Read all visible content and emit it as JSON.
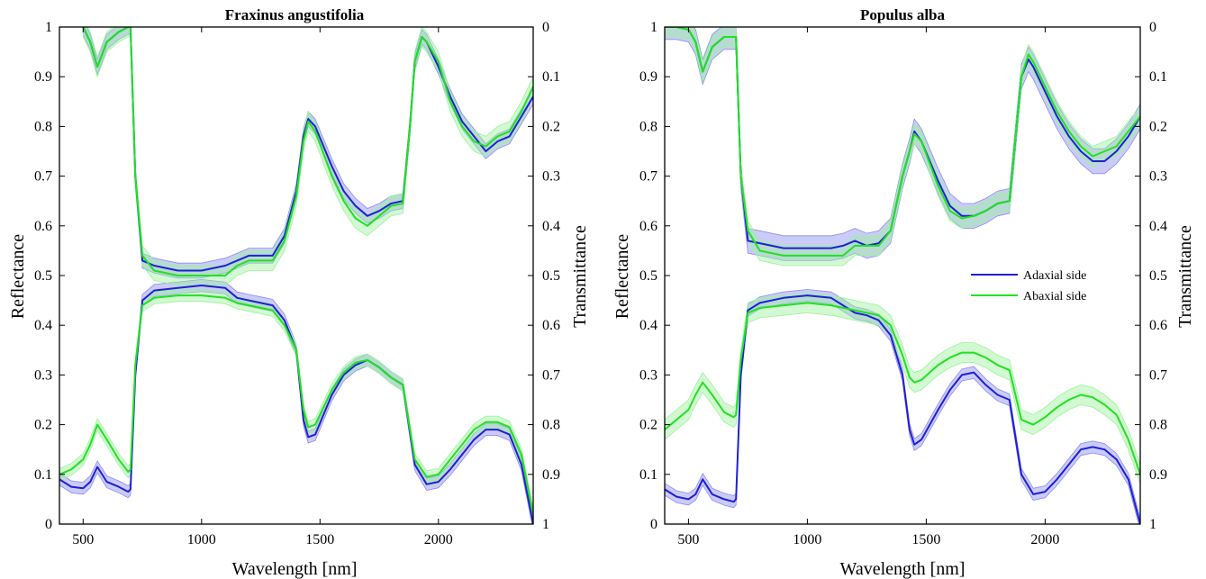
{
  "colors": {
    "adaxial": "#1f1fd6",
    "abaxial": "#22e022",
    "adaxial_band": "#8c8cf0",
    "abaxial_band": "#9cf29c"
  },
  "chart_data": [
    {
      "type": "line",
      "title": "Fraxinus angustifolia",
      "xlabel": "Wavelength [nm]",
      "ylabel": "Reflectance",
      "y2label": "Transmittance",
      "xlim": [
        400,
        2400
      ],
      "ylim": [
        0,
        1
      ],
      "y2lim": [
        1,
        0
      ],
      "xticks": [
        "500",
        "1000",
        "1500",
        "2000"
      ],
      "yticks": [
        "0",
        "0.1",
        "0.2",
        "0.3",
        "0.4",
        "0.5",
        "0.6",
        "0.7",
        "0.8",
        "0.9",
        "1"
      ],
      "y2ticks": [
        "1",
        "0.9",
        "0.8",
        "0.7",
        "0.6",
        "0.5",
        "0.4",
        "0.3",
        "0.2",
        "0.1",
        "0"
      ],
      "grid": false,
      "series": [
        {
          "side": "adaxial",
          "quantity": "reflectance",
          "x": [
            400,
            450,
            500,
            530,
            560,
            600,
            650,
            690,
            700,
            720,
            750,
            800,
            900,
            1000,
            1100,
            1150,
            1200,
            1250,
            1300,
            1350,
            1400,
            1430,
            1450,
            1480,
            1550,
            1600,
            1650,
            1700,
            1750,
            1800,
            1850,
            1900,
            1950,
            2000,
            2050,
            2100,
            2150,
            2200,
            2250,
            2300,
            2350,
            2400
          ],
          "y": [
            0.09,
            0.075,
            0.072,
            0.085,
            0.115,
            0.085,
            0.075,
            0.065,
            0.07,
            0.3,
            0.45,
            0.47,
            0.475,
            0.48,
            0.475,
            0.455,
            0.45,
            0.445,
            0.44,
            0.41,
            0.35,
            0.21,
            0.175,
            0.18,
            0.26,
            0.3,
            0.32,
            0.33,
            0.315,
            0.295,
            0.28,
            0.12,
            0.08,
            0.085,
            0.11,
            0.14,
            0.17,
            0.19,
            0.19,
            0.18,
            0.12,
            0.0
          ],
          "err": 0.012
        },
        {
          "side": "abaxial",
          "quantity": "reflectance",
          "x": [
            400,
            450,
            500,
            530,
            560,
            600,
            650,
            690,
            700,
            720,
            750,
            800,
            900,
            1000,
            1100,
            1150,
            1200,
            1250,
            1300,
            1350,
            1400,
            1430,
            1450,
            1480,
            1550,
            1600,
            1650,
            1700,
            1750,
            1800,
            1850,
            1900,
            1950,
            2000,
            2050,
            2100,
            2150,
            2200,
            2250,
            2300,
            2350,
            2400
          ],
          "y": [
            0.1,
            0.11,
            0.13,
            0.16,
            0.2,
            0.17,
            0.13,
            0.105,
            0.11,
            0.32,
            0.44,
            0.455,
            0.46,
            0.46,
            0.455,
            0.445,
            0.44,
            0.435,
            0.43,
            0.4,
            0.35,
            0.23,
            0.195,
            0.2,
            0.27,
            0.305,
            0.325,
            0.33,
            0.315,
            0.295,
            0.28,
            0.13,
            0.095,
            0.1,
            0.13,
            0.16,
            0.19,
            0.205,
            0.205,
            0.195,
            0.14,
            0.02
          ],
          "err": 0.012
        },
        {
          "side": "adaxial",
          "quantity": "transmittance",
          "x": [
            500,
            530,
            560,
            600,
            650,
            690,
            700,
            720,
            750,
            800,
            900,
            1000,
            1100,
            1150,
            1200,
            1250,
            1300,
            1350,
            1400,
            1430,
            1450,
            1480,
            1550,
            1600,
            1650,
            1700,
            1750,
            1800,
            1850,
            1880,
            1900,
            1930,
            1950,
            2000,
            2050,
            2100,
            2150,
            2200,
            2250,
            2300,
            2350,
            2400
          ],
          "y": [
            0.0,
            0.03,
            0.08,
            0.03,
            0.01,
            0.0,
            0.0,
            0.3,
            0.47,
            0.48,
            0.49,
            0.49,
            0.48,
            0.47,
            0.46,
            0.46,
            0.46,
            0.42,
            0.33,
            0.22,
            0.185,
            0.2,
            0.28,
            0.33,
            0.36,
            0.38,
            0.37,
            0.355,
            0.35,
            0.2,
            0.07,
            0.02,
            0.03,
            0.08,
            0.14,
            0.19,
            0.22,
            0.25,
            0.23,
            0.22,
            0.18,
            0.14
          ],
          "err": 0.015
        },
        {
          "side": "abaxial",
          "quantity": "transmittance",
          "x": [
            500,
            530,
            560,
            600,
            650,
            690,
            700,
            720,
            750,
            800,
            900,
            1000,
            1100,
            1150,
            1200,
            1250,
            1300,
            1350,
            1400,
            1430,
            1450,
            1480,
            1550,
            1600,
            1650,
            1700,
            1750,
            1800,
            1850,
            1880,
            1900,
            1930,
            1950,
            2000,
            2050,
            2100,
            2150,
            2200,
            2250,
            2300,
            2350,
            2400
          ],
          "y": [
            0.0,
            0.03,
            0.08,
            0.03,
            0.01,
            0.0,
            0.0,
            0.3,
            0.46,
            0.49,
            0.5,
            0.5,
            0.5,
            0.48,
            0.47,
            0.47,
            0.47,
            0.43,
            0.34,
            0.23,
            0.19,
            0.21,
            0.3,
            0.35,
            0.385,
            0.4,
            0.38,
            0.36,
            0.355,
            0.2,
            0.07,
            0.02,
            0.03,
            0.07,
            0.15,
            0.2,
            0.23,
            0.24,
            0.22,
            0.21,
            0.17,
            0.12
          ],
          "err": 0.02
        }
      ]
    },
    {
      "type": "line",
      "title": "Populus alba",
      "xlabel": "Wavelength [nm]",
      "ylabel": "Reflectance",
      "y2label": "Transmittance",
      "xlim": [
        400,
        2400
      ],
      "ylim": [
        0,
        1
      ],
      "y2lim": [
        1,
        0
      ],
      "xticks": [
        "500",
        "1000",
        "1500",
        "2000"
      ],
      "yticks": [
        "0",
        "0.1",
        "0.2",
        "0.3",
        "0.4",
        "0.5",
        "0.6",
        "0.7",
        "0.8",
        "0.9",
        "1"
      ],
      "y2ticks": [
        "1",
        "0.9",
        "0.8",
        "0.7",
        "0.6",
        "0.5",
        "0.4",
        "0.3",
        "0.2",
        "0.1",
        "0"
      ],
      "grid": false,
      "legend": {
        "placement": "right, middle",
        "entries": [
          {
            "label": "Adaxial side",
            "side": "adaxial"
          },
          {
            "label": "Abaxial side",
            "side": "abaxial"
          }
        ]
      },
      "series": [
        {
          "side": "adaxial",
          "quantity": "reflectance",
          "x": [
            400,
            450,
            500,
            530,
            560,
            600,
            650,
            690,
            700,
            720,
            750,
            800,
            900,
            1000,
            1100,
            1150,
            1200,
            1250,
            1300,
            1350,
            1400,
            1430,
            1450,
            1480,
            1550,
            1600,
            1650,
            1700,
            1750,
            1800,
            1850,
            1900,
            1950,
            2000,
            2050,
            2100,
            2150,
            2200,
            2250,
            2300,
            2350,
            2400
          ],
          "y": [
            0.07,
            0.055,
            0.05,
            0.06,
            0.09,
            0.06,
            0.05,
            0.045,
            0.05,
            0.3,
            0.43,
            0.445,
            0.455,
            0.46,
            0.455,
            0.44,
            0.425,
            0.42,
            0.41,
            0.38,
            0.3,
            0.19,
            0.16,
            0.17,
            0.23,
            0.27,
            0.3,
            0.305,
            0.28,
            0.26,
            0.25,
            0.1,
            0.06,
            0.065,
            0.09,
            0.12,
            0.15,
            0.155,
            0.15,
            0.13,
            0.09,
            0.0
          ],
          "err": 0.012
        },
        {
          "side": "abaxial",
          "quantity": "reflectance",
          "x": [
            400,
            450,
            500,
            530,
            560,
            600,
            650,
            690,
            700,
            720,
            750,
            800,
            900,
            1000,
            1100,
            1150,
            1200,
            1250,
            1300,
            1350,
            1400,
            1430,
            1450,
            1480,
            1550,
            1600,
            1650,
            1700,
            1750,
            1800,
            1850,
            1900,
            1950,
            2000,
            2050,
            2100,
            2150,
            2200,
            2250,
            2300,
            2350,
            2400
          ],
          "y": [
            0.19,
            0.21,
            0.23,
            0.26,
            0.285,
            0.26,
            0.225,
            0.215,
            0.22,
            0.33,
            0.425,
            0.435,
            0.44,
            0.445,
            0.44,
            0.435,
            0.43,
            0.425,
            0.42,
            0.4,
            0.34,
            0.295,
            0.285,
            0.29,
            0.32,
            0.335,
            0.345,
            0.345,
            0.335,
            0.32,
            0.31,
            0.21,
            0.2,
            0.215,
            0.235,
            0.25,
            0.26,
            0.255,
            0.24,
            0.22,
            0.17,
            0.1
          ],
          "err": 0.02
        },
        {
          "side": "adaxial",
          "quantity": "transmittance",
          "x": [
            400,
            450,
            500,
            530,
            560,
            600,
            650,
            690,
            700,
            720,
            750,
            800,
            900,
            1000,
            1100,
            1150,
            1200,
            1250,
            1300,
            1350,
            1400,
            1430,
            1450,
            1480,
            1550,
            1600,
            1650,
            1700,
            1750,
            1800,
            1850,
            1880,
            1900,
            1930,
            1950,
            2000,
            2050,
            2100,
            2150,
            2200,
            2250,
            2300,
            2350,
            2400
          ],
          "y": [
            0.0,
            0.0,
            0.005,
            0.03,
            0.09,
            0.04,
            0.02,
            0.02,
            0.02,
            0.3,
            0.43,
            0.435,
            0.445,
            0.445,
            0.445,
            0.44,
            0.43,
            0.44,
            0.435,
            0.41,
            0.3,
            0.25,
            0.21,
            0.23,
            0.31,
            0.36,
            0.38,
            0.38,
            0.37,
            0.355,
            0.35,
            0.2,
            0.1,
            0.065,
            0.08,
            0.13,
            0.18,
            0.22,
            0.25,
            0.27,
            0.27,
            0.25,
            0.22,
            0.18
          ],
          "err": 0.025
        },
        {
          "side": "abaxial",
          "quantity": "transmittance",
          "x": [
            400,
            450,
            500,
            530,
            560,
            600,
            650,
            690,
            700,
            720,
            750,
            800,
            900,
            1000,
            1100,
            1150,
            1200,
            1250,
            1300,
            1350,
            1400,
            1430,
            1450,
            1480,
            1550,
            1600,
            1650,
            1700,
            1750,
            1800,
            1850,
            1880,
            1900,
            1930,
            1950,
            2000,
            2050,
            2100,
            2150,
            2200,
            2250,
            2300,
            2350,
            2400
          ],
          "y": [
            0.0,
            0.0,
            0.005,
            0.03,
            0.09,
            0.04,
            0.02,
            0.02,
            0.02,
            0.3,
            0.41,
            0.45,
            0.46,
            0.46,
            0.46,
            0.46,
            0.44,
            0.44,
            0.44,
            0.41,
            0.3,
            0.25,
            0.215,
            0.23,
            0.32,
            0.37,
            0.385,
            0.38,
            0.37,
            0.355,
            0.35,
            0.2,
            0.1,
            0.055,
            0.07,
            0.12,
            0.17,
            0.21,
            0.24,
            0.26,
            0.25,
            0.24,
            0.21,
            0.18
          ],
          "err": 0.02
        }
      ]
    }
  ]
}
